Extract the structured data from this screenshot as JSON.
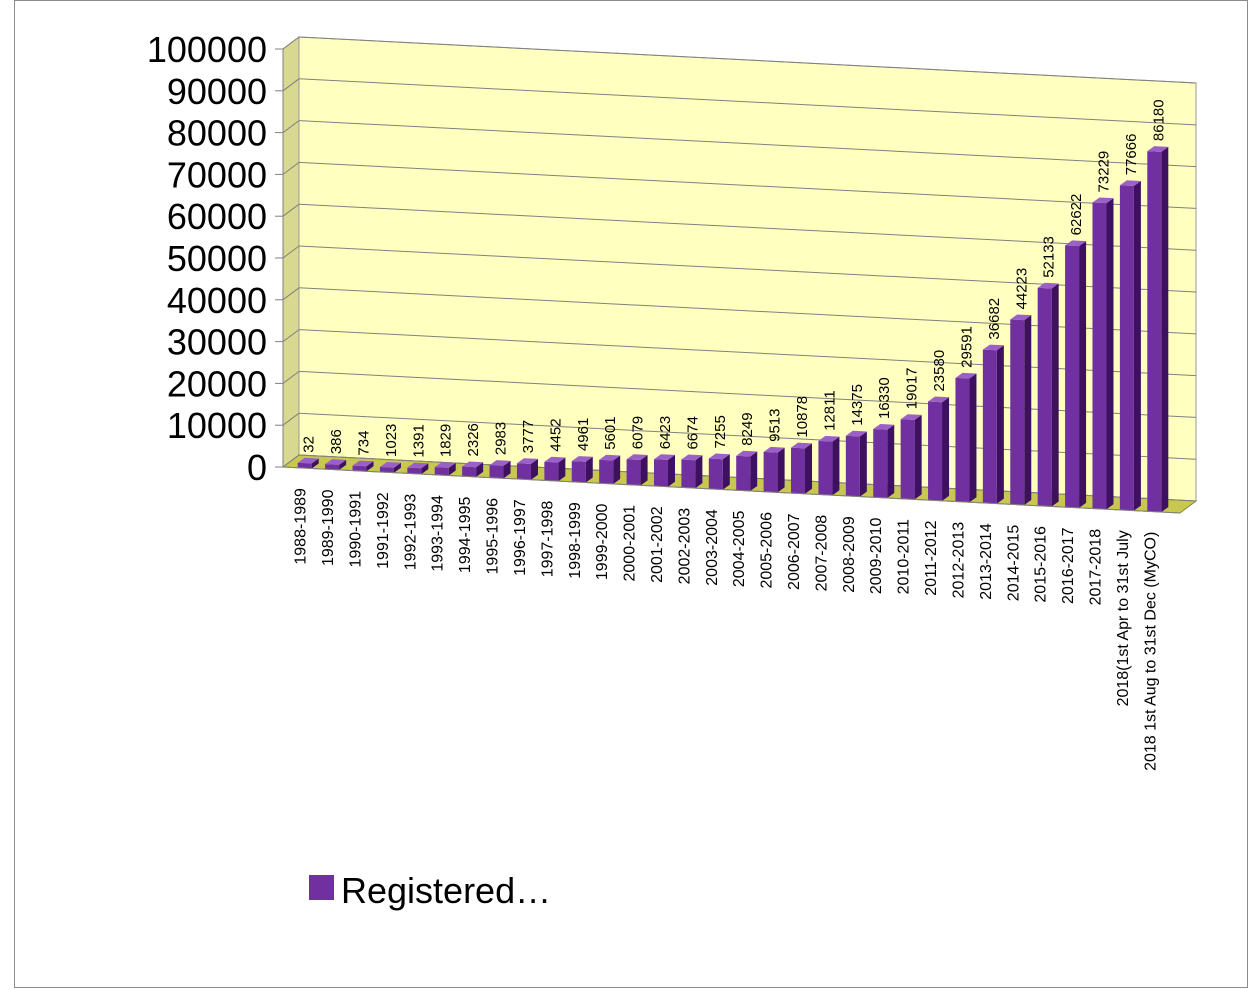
{
  "chart_data": {
    "type": "bar",
    "style": "3d-column",
    "categories": [
      "1988-1989",
      "1989-1990",
      "1990-1991",
      "1991-1992",
      "1992-1993",
      "1993-1994",
      "1994-1995",
      "1995-1996",
      "1996-1997",
      "1997-1998",
      "1998-1999",
      "1999-2000",
      "2000-2001",
      "2001-2002",
      "2002-2003",
      "2003-2004",
      "2004-2005",
      "2005-2006",
      "2006-2007",
      "2007-2008",
      "2008-2009",
      "2009-2010",
      "2010-2011",
      "2011-2012",
      "2012-2013",
      "2013-2014",
      "2014-2015",
      "2015-2016",
      "2016-2017",
      "2017-2018",
      "2018(1st Apr to 31st July",
      "2018 1st Aug to 31st Dec (MyCO)"
    ],
    "series": [
      {
        "name": "Registered…",
        "color": "#7030a0",
        "values": [
          32,
          386,
          734,
          1023,
          1391,
          1829,
          2326,
          2983,
          3777,
          4452,
          4961,
          5601,
          6079,
          6423,
          6674,
          7255,
          8249,
          9513,
          10878,
          12811,
          14375,
          16330,
          19017,
          23580,
          29591,
          36682,
          44223,
          52133,
          62622,
          73229,
          77666,
          86180
        ]
      }
    ],
    "yticks": [
      0,
      10000,
      20000,
      30000,
      40000,
      50000,
      60000,
      70000,
      80000,
      90000,
      100000
    ],
    "ylim": [
      0,
      100000
    ],
    "grid": true,
    "legend_position": "bottom-left",
    "wall_color": "#ffffc0",
    "floor_color": "#c8c850"
  }
}
